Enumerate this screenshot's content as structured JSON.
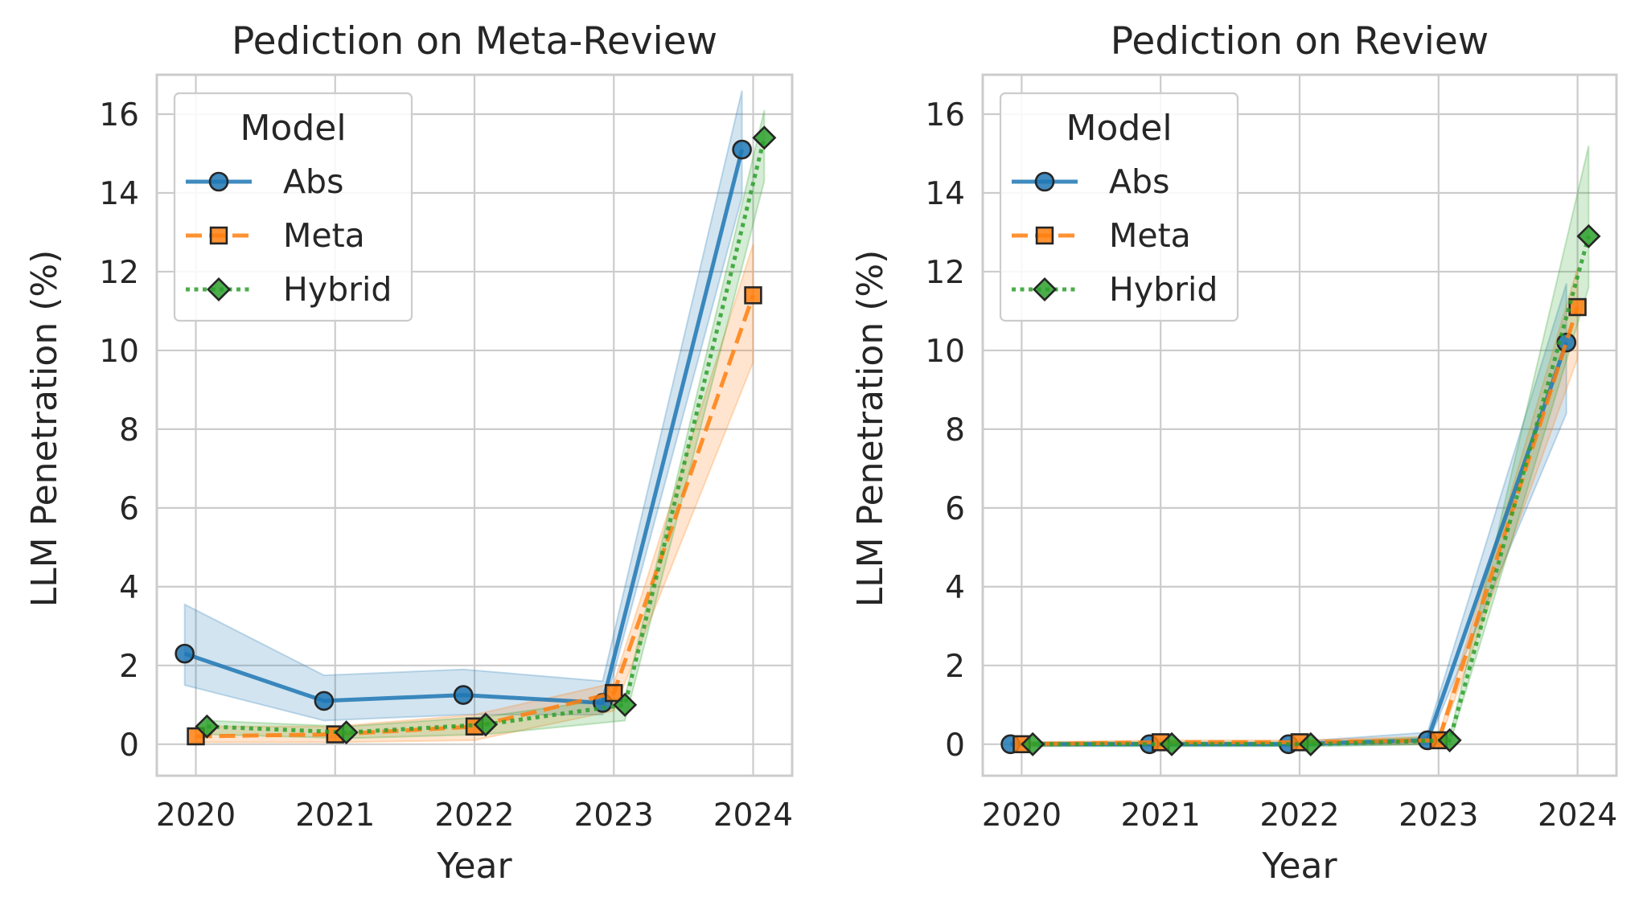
{
  "chart_data": [
    {
      "type": "line",
      "title": "Pediction on Meta-Review",
      "xlabel": "Year",
      "ylabel": "LLM Penetration (%)",
      "x": [
        "2020",
        "2021",
        "2022",
        "2023",
        "2024"
      ],
      "ylim": [
        -0.8,
        17
      ],
      "yticks": [
        0,
        2,
        4,
        6,
        8,
        10,
        12,
        14,
        16
      ],
      "grid": true,
      "legend": {
        "title": "Model",
        "placement": "top-left"
      },
      "series": [
        {
          "name": "Abs",
          "color": "#1f77b4",
          "marker": "circle",
          "linestyle": "solid",
          "values": [
            2.3,
            1.1,
            1.25,
            1.05,
            15.1
          ],
          "ci_low": [
            1.5,
            0.6,
            0.75,
            0.75,
            13.9
          ],
          "ci_high": [
            3.55,
            1.75,
            1.9,
            1.6,
            16.6
          ]
        },
        {
          "name": "Meta",
          "color": "#ff7f0e",
          "marker": "square",
          "linestyle": "dashed",
          "values": [
            0.2,
            0.25,
            0.45,
            1.3,
            11.4
          ],
          "ci_low": [
            0.05,
            0.05,
            0.1,
            0.85,
            9.7
          ],
          "ci_high": [
            0.45,
            0.45,
            0.75,
            1.55,
            12.7
          ]
        },
        {
          "name": "Hybrid",
          "color": "#2ca02c",
          "marker": "diamond",
          "linestyle": "dotted",
          "values": [
            0.45,
            0.3,
            0.5,
            1.0,
            15.4
          ],
          "ci_low": [
            0.25,
            0.15,
            0.25,
            0.6,
            14.3
          ],
          "ci_high": [
            0.6,
            0.45,
            0.7,
            1.2,
            16.1
          ]
        }
      ]
    },
    {
      "type": "line",
      "title": "Pediction on Review",
      "xlabel": "Year",
      "ylabel": "LLM Penetration (%)",
      "x": [
        "2020",
        "2021",
        "2022",
        "2023",
        "2024"
      ],
      "ylim": [
        -0.8,
        17
      ],
      "yticks": [
        0,
        2,
        4,
        6,
        8,
        10,
        12,
        14,
        16
      ],
      "grid": true,
      "legend": {
        "title": "Model",
        "placement": "top-left"
      },
      "series": [
        {
          "name": "Abs",
          "color": "#1f77b4",
          "marker": "circle",
          "linestyle": "solid",
          "values": [
            0.0,
            0.0,
            0.0,
            0.1,
            10.2
          ],
          "ci_low": [
            -0.05,
            -0.05,
            -0.05,
            0.0,
            8.4
          ],
          "ci_high": [
            0.05,
            0.05,
            0.05,
            0.3,
            11.7
          ]
        },
        {
          "name": "Meta",
          "color": "#ff7f0e",
          "marker": "square",
          "linestyle": "dashed",
          "values": [
            0.0,
            0.05,
            0.05,
            0.1,
            11.1
          ],
          "ci_low": [
            -0.05,
            0.0,
            0.0,
            0.0,
            9.8
          ],
          "ci_high": [
            0.05,
            0.1,
            0.1,
            0.2,
            12.1
          ]
        },
        {
          "name": "Hybrid",
          "color": "#2ca02c",
          "marker": "diamond",
          "linestyle": "dotted",
          "values": [
            0.0,
            0.0,
            0.0,
            0.1,
            12.9
          ],
          "ci_low": [
            -0.05,
            -0.05,
            -0.05,
            0.0,
            11.6
          ],
          "ci_high": [
            0.05,
            0.05,
            0.05,
            0.2,
            15.2
          ]
        }
      ]
    }
  ]
}
